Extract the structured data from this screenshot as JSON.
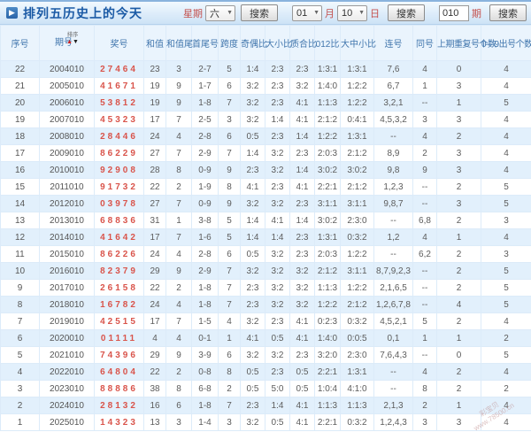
{
  "titlebar": {
    "title": "排列五历史上的今天",
    "icon": "play-icon",
    "week": {
      "label": "星期",
      "value": "六",
      "search": "搜索"
    },
    "date": {
      "month_value": "01",
      "month_label": "月",
      "day_value": "10",
      "day_label": "日",
      "search": "搜索"
    },
    "issue": {
      "value": "010",
      "label": "期",
      "search": "搜索"
    }
  },
  "table": {
    "columns": [
      "序号",
      "期号",
      "奖号",
      "和值",
      "和值尾",
      "首尾号",
      "跨度",
      "奇偶比",
      "大小比",
      "质合比",
      "012比",
      "大中小比",
      "连号",
      "同号",
      "上期重复号个数",
      "0—9出号个数"
    ],
    "column_keys": [
      "index",
      "issue",
      "prize",
      "sum",
      "sum-tail",
      "first-last",
      "span",
      "odd-even",
      "big-small",
      "prime-composite",
      "ratio-012",
      "big-mid-small",
      "consecutive",
      "same-number",
      "prev-repeat-count",
      "digit-appear-count"
    ],
    "sort_label": "排序",
    "rows": [
      [
        "22",
        "2004010",
        "27464",
        "23",
        "3",
        "2-7",
        "5",
        "1:4",
        "2:3",
        "2:3",
        "1:3:1",
        "1:3:1",
        "7,6",
        "4",
        "0",
        "4"
      ],
      [
        "21",
        "2005010",
        "41671",
        "19",
        "9",
        "1-7",
        "6",
        "3:2",
        "2:3",
        "3:2",
        "1:4:0",
        "1:2:2",
        "6,7",
        "1",
        "3",
        "4"
      ],
      [
        "20",
        "2006010",
        "53812",
        "19",
        "9",
        "1-8",
        "7",
        "3:2",
        "2:3",
        "4:1",
        "1:1:3",
        "1:2:2",
        "3,2,1",
        "--",
        "1",
        "5"
      ],
      [
        "19",
        "2007010",
        "45323",
        "17",
        "7",
        "2-5",
        "3",
        "3:2",
        "1:4",
        "4:1",
        "2:1:2",
        "0:4:1",
        "4,5,3,2",
        "3",
        "3",
        "4"
      ],
      [
        "18",
        "2008010",
        "28446",
        "24",
        "4",
        "2-8",
        "6",
        "0:5",
        "2:3",
        "1:4",
        "1:2:2",
        "1:3:1",
        "--",
        "4",
        "2",
        "4"
      ],
      [
        "17",
        "2009010",
        "86229",
        "27",
        "7",
        "2-9",
        "7",
        "1:4",
        "3:2",
        "2:3",
        "2:0:3",
        "2:1:2",
        "8,9",
        "2",
        "3",
        "4"
      ],
      [
        "16",
        "2010010",
        "92908",
        "28",
        "8",
        "0-9",
        "9",
        "2:3",
        "3:2",
        "1:4",
        "3:0:2",
        "3:0:2",
        "9,8",
        "9",
        "3",
        "4"
      ],
      [
        "15",
        "2011010",
        "91732",
        "22",
        "2",
        "1-9",
        "8",
        "4:1",
        "2:3",
        "4:1",
        "2:2:1",
        "2:1:2",
        "1,2,3",
        "--",
        "2",
        "5"
      ],
      [
        "14",
        "2012010",
        "03978",
        "27",
        "7",
        "0-9",
        "9",
        "3:2",
        "3:2",
        "2:3",
        "3:1:1",
        "3:1:1",
        "9,8,7",
        "--",
        "3",
        "5"
      ],
      [
        "13",
        "2013010",
        "68836",
        "31",
        "1",
        "3-8",
        "5",
        "1:4",
        "4:1",
        "1:4",
        "3:0:2",
        "2:3:0",
        "--",
        "6,8",
        "2",
        "3"
      ],
      [
        "12",
        "2014010",
        "41642",
        "17",
        "7",
        "1-6",
        "5",
        "1:4",
        "1:4",
        "2:3",
        "1:3:1",
        "0:3:2",
        "1,2",
        "4",
        "1",
        "4"
      ],
      [
        "11",
        "2015010",
        "86226",
        "24",
        "4",
        "2-8",
        "6",
        "0:5",
        "3:2",
        "2:3",
        "2:0:3",
        "1:2:2",
        "--",
        "6,2",
        "2",
        "3"
      ],
      [
        "10",
        "2016010",
        "82379",
        "29",
        "9",
        "2-9",
        "7",
        "3:2",
        "3:2",
        "3:2",
        "2:1:2",
        "3:1:1",
        "8,7,9,2,3",
        "--",
        "2",
        "5"
      ],
      [
        "9",
        "2017010",
        "26158",
        "22",
        "2",
        "1-8",
        "7",
        "2:3",
        "3:2",
        "3:2",
        "1:1:3",
        "1:2:2",
        "2,1,6,5",
        "--",
        "2",
        "5"
      ],
      [
        "8",
        "2018010",
        "16782",
        "24",
        "4",
        "1-8",
        "7",
        "2:3",
        "3:2",
        "3:2",
        "1:2:2",
        "2:1:2",
        "1,2,6,7,8",
        "--",
        "4",
        "5"
      ],
      [
        "7",
        "2019010",
        "42515",
        "17",
        "7",
        "1-5",
        "4",
        "3:2",
        "2:3",
        "4:1",
        "0:2:3",
        "0:3:2",
        "4,5,2,1",
        "5",
        "2",
        "4"
      ],
      [
        "6",
        "2020010",
        "01111",
        "4",
        "4",
        "0-1",
        "1",
        "4:1",
        "0:5",
        "4:1",
        "1:4:0",
        "0:0:5",
        "0,1",
        "1",
        "1",
        "2"
      ],
      [
        "5",
        "2021010",
        "74396",
        "29",
        "9",
        "3-9",
        "6",
        "3:2",
        "3:2",
        "2:3",
        "3:2:0",
        "2:3:0",
        "7,6,4,3",
        "--",
        "0",
        "5"
      ],
      [
        "4",
        "2022010",
        "64804",
        "22",
        "2",
        "0-8",
        "8",
        "0:5",
        "2:3",
        "0:5",
        "2:2:1",
        "1:3:1",
        "--",
        "4",
        "2",
        "4"
      ],
      [
        "3",
        "2023010",
        "88886",
        "38",
        "8",
        "6-8",
        "2",
        "0:5",
        "5:0",
        "0:5",
        "1:0:4",
        "4:1:0",
        "--",
        "8",
        "2",
        "2"
      ],
      [
        "2",
        "2024010",
        "28132",
        "16",
        "6",
        "1-8",
        "7",
        "2:3",
        "1:4",
        "4:1",
        "1:1:3",
        "1:1:3",
        "2,1,3",
        "2",
        "1",
        "4"
      ],
      [
        "1",
        "2025010",
        "14323",
        "13",
        "3",
        "1-4",
        "3",
        "3:2",
        "0:5",
        "4:1",
        "2:2:1",
        "0:3:2",
        "1,2,4,3",
        "3",
        "3",
        "4"
      ]
    ]
  },
  "watermark": {
    "brand": "彩宝贝",
    "url": "www.78500.cn"
  },
  "colors": {
    "accent_blue": "#1b5aa5",
    "prize_red": "#d9544b",
    "row_alt_blue": "#e2f0fc",
    "header_bg": "#eaf4fd",
    "label_red": "#c4514e"
  }
}
